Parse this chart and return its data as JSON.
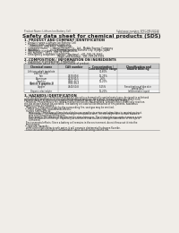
{
  "bg_color": "#f0ede8",
  "text_color": "#1a1a1a",
  "title": "Safety data sheet for chemical products (SDS)",
  "header_left": "Product Name: Lithium Ion Battery Cell",
  "header_right1": "Substance number: SPEC-MB-00018",
  "header_right2": "Established / Revision: Dec.1.2019",
  "s1_title": "1. PRODUCT AND COMPANY IDENTIFICATION",
  "s1_lines": [
    "•  Product name: Lithium Ion Battery Cell",
    "•  Product code: Cylindrical-type cell",
    "      (IHR86600, IHR18650, IHR18650A)",
    "•  Company name:      Sanyo Electric Co., Ltd., Mobile Energy Company",
    "•  Address:              2021, Kaminakamura, Sumoto City, Hyogo, Japan",
    "•  Telephone number:  +81-(799)-26-4111",
    "•  Fax number:  +81-1-799-26-4121",
    "•  Emergency telephone number (daytime): +81-799-26-3662",
    "                                         (Night and holiday): +81-799-26-3121"
  ],
  "s2_title": "2. COMPOSITION / INFORMATION ON INGREDIENTS",
  "s2_prep": "•  Substance or preparation: Preparation",
  "s2_info": "•  Information about the chemical nature of product:",
  "tbl_hdrs": [
    "Chemical name",
    "CAS number",
    "Concentration /\nConcentration range",
    "Classification and\nhazard labeling"
  ],
  "tbl_rows": [
    [
      "Lithium cobalt tantalate\n(LiAlCo1-xO2)",
      "-",
      "30-60%",
      ""
    ],
    [
      "Iron",
      "7439-89-6",
      "15-25%",
      ""
    ],
    [
      "Aluminum",
      "7429-90-5",
      "2-6%",
      ""
    ],
    [
      "Graphite\n(Article in graphite-1)\n(Article in graphite-2)",
      "7782-42-5\n7782-44-2",
      "10-20%",
      ""
    ],
    [
      "Copper",
      "7440-50-8",
      "5-15%",
      "Sensitization of the skin\ngroup No.2"
    ],
    [
      "Organic electrolyte",
      "-",
      "10-20%",
      "Inflammable liquid"
    ]
  ],
  "s3_title": "3. HAZARDS IDENTIFICATION",
  "s3_para": [
    "   For the battery cell, chemical materials are stored in a hermetically-sealed metal case, designed to withstand",
    "temperatures and pressures encountered during normal use. As a result, during normal use, there is no",
    "physical danger of ignition or explosion and therefore danger of hazardous materials leakage.",
    "   However, if exposed to a fire, added mechanical shocks, decomposed, vented electro-chemically reaction,",
    "the gas release cannot be operated. The battery cell case will be breached of fire-patients, hazardous",
    "materials may be released.",
    "   Moreover, if heated strongly by the surrounding fire, soot gas may be emitted."
  ],
  "s3_haz_title": "•  Most important hazard and effects:",
  "s3_haz_lines": [
    "Human health effects:",
    "    Inhalation: The release of the electrolyte has an anesthesia action and stimulates in respiratory tract.",
    "    Skin contact: The release of the electrolyte stimulates a skin. The electrolyte skin contact causes a",
    "    sore and stimulation on the skin.",
    "    Eye contact: The release of the electrolyte stimulates eyes. The electrolyte eye contact causes a sore",
    "    and stimulation on the eye. Especially, a substance that causes a strong inflammation of the eye is",
    "    contained.",
    "",
    "Environmental effects: Since a battery cell remains in the environment, do not throw out it into the",
    "environment."
  ],
  "s3_spec_title": "•  Specific hazards:",
  "s3_spec_lines": [
    "If the electrolyte contacts with water, it will generate detrimental hydrogen fluoride.",
    "Since the used electrolyte is inflammable liquid, do not bring close to fire."
  ],
  "col_borders": [
    3,
    52,
    96,
    137,
    197
  ],
  "tbl_hdr_color": "#c8c8c8",
  "line_color": "#888888"
}
